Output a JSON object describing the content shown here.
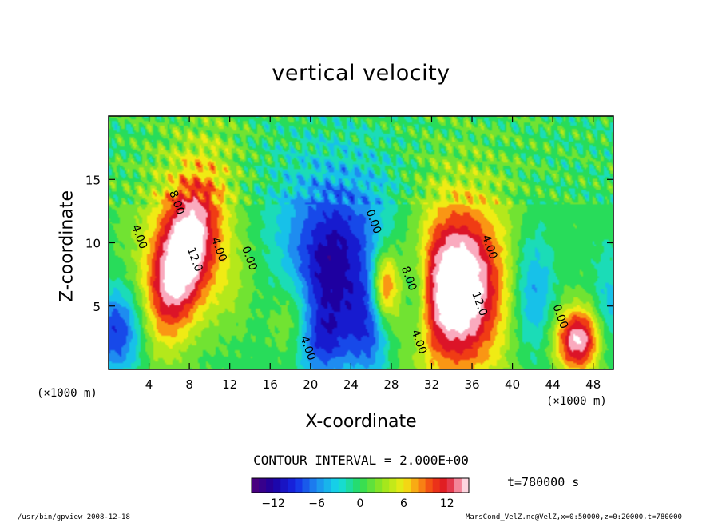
{
  "chart_data": {
    "type": "heatmap",
    "title": "vertical velocity",
    "xlabel": "X-coordinate",
    "ylabel": "Z-coordinate",
    "x_unit": "(×1000 m)",
    "y_unit": "(×1000 m)",
    "xlim": [
      0,
      50
    ],
    "ylim": [
      0,
      20
    ],
    "x_ticks": [
      4,
      8,
      12,
      16,
      20,
      24,
      28,
      32,
      36,
      40,
      44,
      48
    ],
    "y_ticks": [
      5,
      10,
      15
    ],
    "contour_interval_label": "CONTOUR INTERVAL = 2.000E+00",
    "colorbar": {
      "min": -15,
      "max": 15,
      "ticks": [
        -12,
        -6,
        0,
        6,
        12
      ]
    },
    "contour_labels": [
      {
        "x": 6.0,
        "z": 14.0,
        "text": "8.00"
      },
      {
        "x": 7.8,
        "z": 9.5,
        "text": "12.0"
      },
      {
        "x": 10.2,
        "z": 10.3,
        "text": "4.00"
      },
      {
        "x": 2.3,
        "z": 11.3,
        "text": "4.00"
      },
      {
        "x": 13.2,
        "z": 9.6,
        "text": "0.00"
      },
      {
        "x": 19.0,
        "z": 2.5,
        "text": "4.00"
      },
      {
        "x": 25.5,
        "z": 12.5,
        "text": "0.00"
      },
      {
        "x": 29.0,
        "z": 8.0,
        "text": "8.00"
      },
      {
        "x": 30.0,
        "z": 3.0,
        "text": "4.00"
      },
      {
        "x": 36.0,
        "z": 6.0,
        "text": "12.0"
      },
      {
        "x": 37.0,
        "z": 10.5,
        "text": "4.00"
      },
      {
        "x": 44.0,
        "z": 5.0,
        "text": "0.00"
      }
    ],
    "features": [
      {
        "x": 7.3,
        "z": 8.6,
        "amp": 15,
        "sx": 2.0,
        "sz": 4.5,
        "rot": 0.35
      },
      {
        "x": 7.0,
        "z": 11.0,
        "amp": 5,
        "sx": 3.5,
        "sz": 6.0,
        "rot": 0.3
      },
      {
        "x": 34.5,
        "z": 6.5,
        "amp": 15,
        "sx": 3.0,
        "sz": 4.2,
        "rot": 0
      },
      {
        "x": 34.5,
        "z": 6.5,
        "amp": 5,
        "sx": 5.0,
        "sz": 7.0,
        "rot": 0
      },
      {
        "x": 46.5,
        "z": 2.3,
        "amp": 15,
        "sx": 1.6,
        "sz": 1.8,
        "rot": 0
      },
      {
        "x": 18.2,
        "z": 3.8,
        "amp": 6,
        "sx": 1.5,
        "sz": 2.5,
        "rot": 0
      },
      {
        "x": 27.3,
        "z": 6.5,
        "amp": 11,
        "sx": 0.9,
        "sz": 2.0,
        "rot": 0
      },
      {
        "x": 12.0,
        "z": 7.0,
        "amp": 3,
        "sx": 2.0,
        "sz": 3.0,
        "rot": 0
      },
      {
        "x": 22.0,
        "z": 7.0,
        "amp": -10,
        "sx": 3.0,
        "sz": 4.0,
        "rot": 0
      },
      {
        "x": 23.5,
        "z": 12.0,
        "amp": -5,
        "sx": 5.0,
        "sz": 4.0,
        "rot": 0
      },
      {
        "x": 26.0,
        "z": 3.0,
        "amp": -7,
        "sx": 1.5,
        "sz": 3.0,
        "rot": 0
      },
      {
        "x": 1.0,
        "z": 3.0,
        "amp": -10,
        "sx": 2.0,
        "sz": 2.5,
        "rot": 0
      },
      {
        "x": 42.0,
        "z": 6.0,
        "amp": -7,
        "sx": 1.5,
        "sz": 3.5,
        "rot": 0
      },
      {
        "x": 49.5,
        "z": 5.0,
        "amp": -4,
        "sx": 1.0,
        "sz": 3.0,
        "rot": 0
      },
      {
        "x": 30.5,
        "z": 6.0,
        "amp": -7,
        "sx": 1.0,
        "sz": 3.0,
        "rot": 0
      },
      {
        "x": 21.0,
        "z": 2.0,
        "amp": -6,
        "sx": 2.0,
        "sz": 2.0,
        "rot": 0
      }
    ],
    "time_label": "t=780000 s"
  },
  "footer": {
    "left": "/usr/bin/gpview  2008-12-18",
    "right": "MarsCond_VelZ.nc@VelZ,x=0:50000,z=0:20000,t=780000"
  },
  "colors": {
    "frame": "#000000",
    "background": "#ffffff"
  }
}
